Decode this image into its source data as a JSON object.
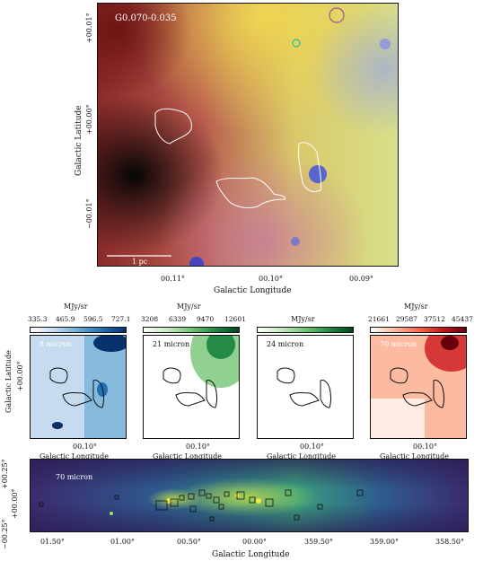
{
  "main_panel": {
    "field_label": "G0.070-0.035",
    "scalebar_label": "1 pc",
    "x_ticks": [
      "00.11°",
      "00.10°",
      "00.09°"
    ],
    "y_ticks": [
      "+00.01°",
      "+00.00°",
      "−00.01°"
    ],
    "xlabel": "Galactic Longitude",
    "ylabel": "Galactic Latitude"
  },
  "small_panels": [
    {
      "band_label": "8 micron",
      "colorbar_unit": "MJy/sr",
      "colorbar_ticks": [
        "335.3",
        "465.9",
        "596.5",
        "727.1"
      ],
      "x_tick": "00.10°",
      "xlabel": "Galactic Longitude",
      "colormap": [
        "#ffffff",
        "#c6dbef",
        "#6baed6",
        "#2171b5",
        "#08306b"
      ]
    },
    {
      "band_label": "21 micron",
      "colorbar_unit": "MJy/sr",
      "colorbar_ticks": [
        "3208",
        "6339",
        "9470",
        "12601"
      ],
      "x_tick": "00.10°",
      "xlabel": "Galactic Longitude",
      "colormap": [
        "#ffffff",
        "#c7e9c0",
        "#74c476",
        "#238b45",
        "#00441b"
      ]
    },
    {
      "band_label": "24 micron",
      "colorbar_unit": "MJy/sr",
      "colorbar_ticks": [],
      "x_tick": "00.10°",
      "xlabel": "Galactic Longitude",
      "colormap": [
        "#ffffff",
        "#c7e9c0",
        "#74c476",
        "#238b45",
        "#00441b"
      ]
    },
    {
      "band_label": "70 micron",
      "colorbar_unit": "MJy/sr",
      "colorbar_ticks": [
        "21661",
        "29587",
        "37512",
        "45437"
      ],
      "x_tick": "00.10°",
      "xlabel": "Galactic Longitude",
      "colormap": [
        "#ffffff",
        "#fcbba1",
        "#fb6a4a",
        "#cb181d",
        "#67000d"
      ]
    }
  ],
  "small_ylabel": "Galactic Latitude",
  "small_ytick": "+00.00°",
  "strip_panel": {
    "band_label": "70 micron",
    "x_ticks": [
      "01.50°",
      "01.00°",
      "00.50°",
      "00.00°",
      "359.50°",
      "359.00°",
      "358.50°"
    ],
    "y_ticks": [
      "+00.25°",
      "+00.00°",
      "−00.25°"
    ],
    "xlabel": "Galactic Longitude"
  }
}
